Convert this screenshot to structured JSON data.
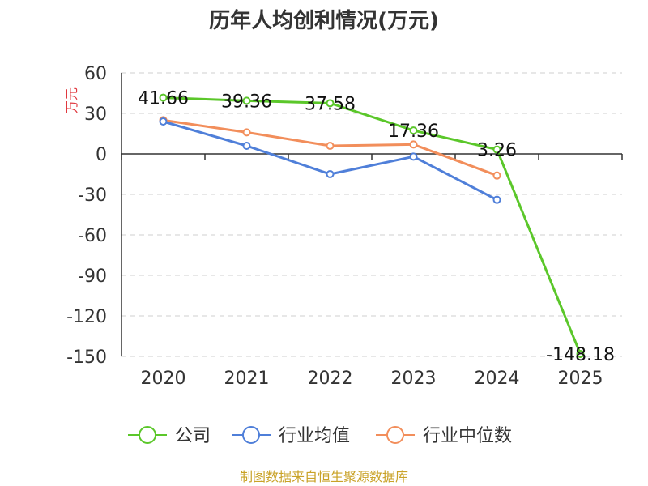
{
  "chart_data": {
    "type": "line",
    "title": "历年人均创利情况(万元)",
    "xlabel": "",
    "ylabel": "万元",
    "categories": [
      "2020",
      "2021",
      "2022",
      "2023",
      "2024",
      "2025"
    ],
    "ylim": [
      -150,
      60
    ],
    "yticks": [
      60,
      30,
      0,
      -30,
      -60,
      -90,
      -120,
      -150
    ],
    "ytick_labels": [
      "60",
      "30",
      "0",
      "-30",
      "-60",
      "-90",
      "-120",
      "-150"
    ],
    "grid": true,
    "legend_position": "bottom",
    "series": [
      {
        "name": "公司",
        "color": "#5bc72a",
        "values": [
          41.66,
          39.36,
          37.58,
          17.36,
          3.26,
          -148.18
        ],
        "labels": [
          "41.66",
          "39.36",
          "37.58",
          "17.36",
          "3.26",
          "-148.18"
        ]
      },
      {
        "name": "行业均值",
        "color": "#4f7fd9",
        "values": [
          24,
          6,
          -15,
          -2,
          -34,
          null
        ]
      },
      {
        "name": "行业中位数",
        "color": "#f28e5b",
        "values": [
          25,
          16,
          6,
          7,
          -16,
          null
        ]
      }
    ],
    "source": "制图数据来自恒生聚源数据库"
  }
}
